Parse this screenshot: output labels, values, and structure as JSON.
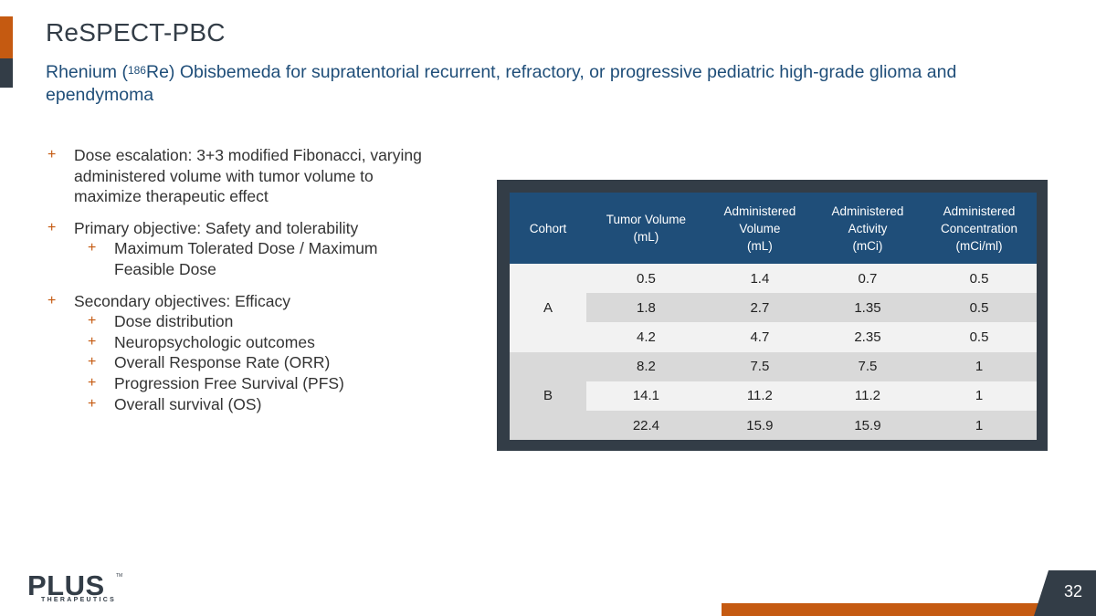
{
  "slide": {
    "title": "ReSPECT-PBC",
    "subtitle_pre": "Rhenium (",
    "subtitle_sup": "186",
    "subtitle_post": "Re) Obisbemeda for supratentorial recurrent, refractory, or progressive pediatric high-grade glioma and ependymoma",
    "page_number": "32"
  },
  "bullets": {
    "dose_escalation": "Dose escalation: 3+3 modified Fibonacci, varying administered volume with tumor volume to maximize therapeutic effect",
    "primary": "Primary objective: Safety and tolerability",
    "primary_sub": [
      "Maximum Tolerated Dose / Maximum Feasible Dose"
    ],
    "secondary": "Secondary objectives: Efficacy",
    "secondary_sub": [
      "Dose distribution",
      "Neuropsychologic outcomes",
      "Overall Response Rate (ORR)",
      "Progression Free Survival (PFS)",
      "Overall survival (OS)"
    ],
    "marker": "+"
  },
  "table": {
    "headers": {
      "cohort": "Cohort",
      "tumor_volume": [
        "Tumor Volume",
        "(mL)"
      ],
      "administered_volume": [
        "Administered",
        "Volume",
        "(mL)"
      ],
      "administered_activity": [
        "Administered",
        "Activity",
        "(mCi)"
      ],
      "administered_concentration": [
        "Administered",
        "Concentration",
        "(mCi/ml)"
      ]
    },
    "cohorts": [
      {
        "label": "A",
        "rows": [
          [
            "0.5",
            "1.4",
            "0.7",
            "0.5"
          ],
          [
            "1.8",
            "2.7",
            "1.35",
            "0.5"
          ],
          [
            "4.2",
            "4.7",
            "2.35",
            "0.5"
          ]
        ]
      },
      {
        "label": "B",
        "rows": [
          [
            "8.2",
            "7.5",
            "7.5",
            "1"
          ],
          [
            "14.1",
            "11.2",
            "11.2",
            "1"
          ],
          [
            "22.4",
            "15.9",
            "15.9",
            "1"
          ]
        ]
      }
    ]
  },
  "logo": {
    "word": "PLUS",
    "tm": "TM",
    "sub": "THERAPEUTICS"
  },
  "colors": {
    "accent": "#c55a11",
    "dark": "#333d47",
    "header_blue": "#1f4e79"
  }
}
